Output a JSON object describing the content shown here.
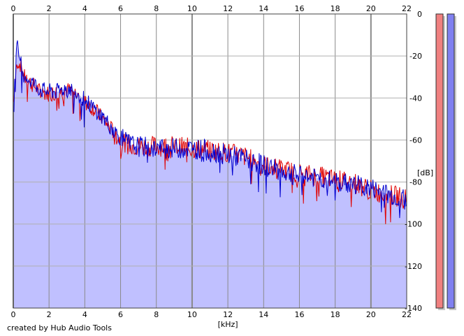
{
  "chart_data": {
    "type": "line",
    "title": "",
    "xlabel": "[kHz]",
    "ylabel": "[dB]",
    "xlim": [
      0,
      22
    ],
    "ylim": [
      -140,
      0
    ],
    "x_ticks": [
      0,
      2,
      4,
      6,
      8,
      10,
      12,
      14,
      16,
      18,
      20,
      22
    ],
    "y_ticks": [
      0,
      -20,
      -40,
      -60,
      -80,
      -100,
      -120,
      -140
    ],
    "grid": true,
    "series": [
      {
        "color": "#e00000",
        "x": [
          0,
          0.2,
          0.4,
          0.6,
          1,
          1.5,
          2,
          2.5,
          3,
          3.5,
          4,
          4.5,
          5,
          5.5,
          6,
          6.5,
          7,
          8,
          9,
          10,
          11,
          12,
          13,
          14,
          15,
          16,
          17,
          18,
          19,
          20,
          21,
          22
        ],
        "y": [
          -42,
          -22,
          -24,
          -30,
          -33,
          -37,
          -38,
          -37,
          -36,
          -38,
          -42,
          -45,
          -50,
          -55,
          -60,
          -62,
          -63,
          -63,
          -63,
          -64,
          -65,
          -66,
          -68,
          -72,
          -74,
          -76,
          -77,
          -79,
          -80,
          -84,
          -86,
          -88
        ]
      },
      {
        "color": "#0000d0",
        "x": [
          0,
          0.2,
          0.4,
          0.6,
          1,
          1.5,
          2,
          2.5,
          3,
          3.5,
          4,
          4.5,
          5,
          5.5,
          6,
          6.5,
          7,
          8,
          9,
          10,
          11,
          12,
          13,
          14,
          15,
          16,
          17,
          18,
          19,
          20,
          21,
          22
        ],
        "y": [
          -44,
          -15,
          -22,
          -29,
          -32,
          -36,
          -37,
          -37,
          -35,
          -37,
          -41,
          -45,
          -49,
          -54,
          -59,
          -62,
          -63,
          -64,
          -64,
          -64,
          -65,
          -67,
          -69,
          -72,
          -75,
          -77,
          -78,
          -80,
          -81,
          -83,
          -86,
          -89
        ]
      }
    ],
    "area_fill_color": "#c0c0ff",
    "level_meters": {
      "left": {
        "color": "#f08080",
        "level": 1.0
      },
      "right": {
        "color": "#8080f0",
        "level": 1.0
      }
    }
  },
  "footer": {
    "credit": "created by Hub Audio Tools"
  }
}
